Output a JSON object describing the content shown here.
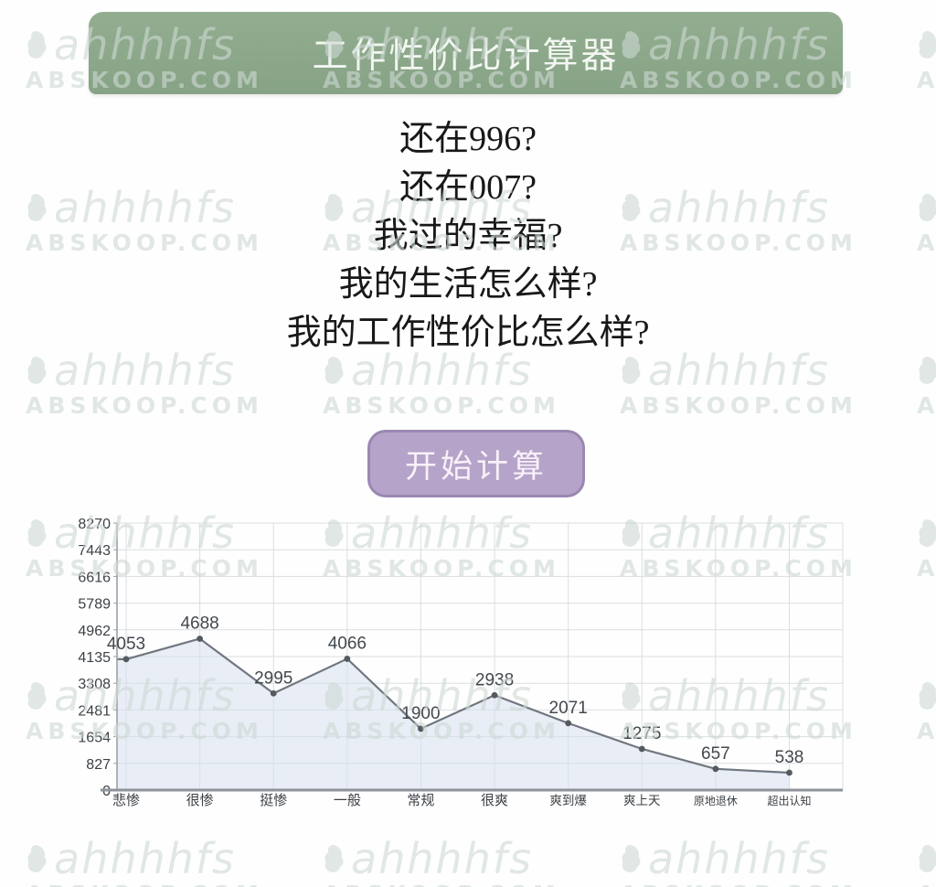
{
  "header": {
    "title": "工作性价比计算器"
  },
  "intro_lines": [
    "还在996?",
    "还在007?",
    "我过的幸福?",
    "我的生活怎么样?",
    "我的工作性价比怎么样?"
  ],
  "start_button": {
    "label": "开始计算"
  },
  "watermark": {
    "brand": "ahhhhfs",
    "site": "ABSKOOP.COM"
  },
  "colors": {
    "header_bg_top": "#92ad8f",
    "header_bg_bottom": "#87a385",
    "button_bg": "#b6a3c9",
    "button_border": "#9b87b2",
    "chart_line": "#70777f",
    "chart_fill": "rgba(215,224,238,0.55)",
    "chart_marker": "#555a60",
    "grid_line": "#dadee2",
    "axis_line": "#9aa0a5",
    "baseline": "#8d9399"
  },
  "chart_data": {
    "type": "area",
    "categories": [
      "悲惨",
      "很惨",
      "挺惨",
      "一般",
      "常规",
      "很爽",
      "爽到爆",
      "爽上天",
      "原地退休",
      "超出认知"
    ],
    "values": [
      4053,
      4688,
      2995,
      4066,
      1900,
      2938,
      2071,
      1275,
      657,
      538
    ],
    "value_labels": [
      "4053",
      "4688",
      "2995",
      "4066",
      "1900",
      "2938",
      "2071",
      "1275",
      "657",
      "538"
    ],
    "yticks": [
      0,
      827,
      1654,
      2481,
      3308,
      4135,
      4962,
      5789,
      6616,
      7443,
      8270
    ],
    "ylim": [
      0,
      8270
    ],
    "xlabel": "",
    "ylabel": "",
    "title": "",
    "grid": true,
    "legend": "none"
  }
}
